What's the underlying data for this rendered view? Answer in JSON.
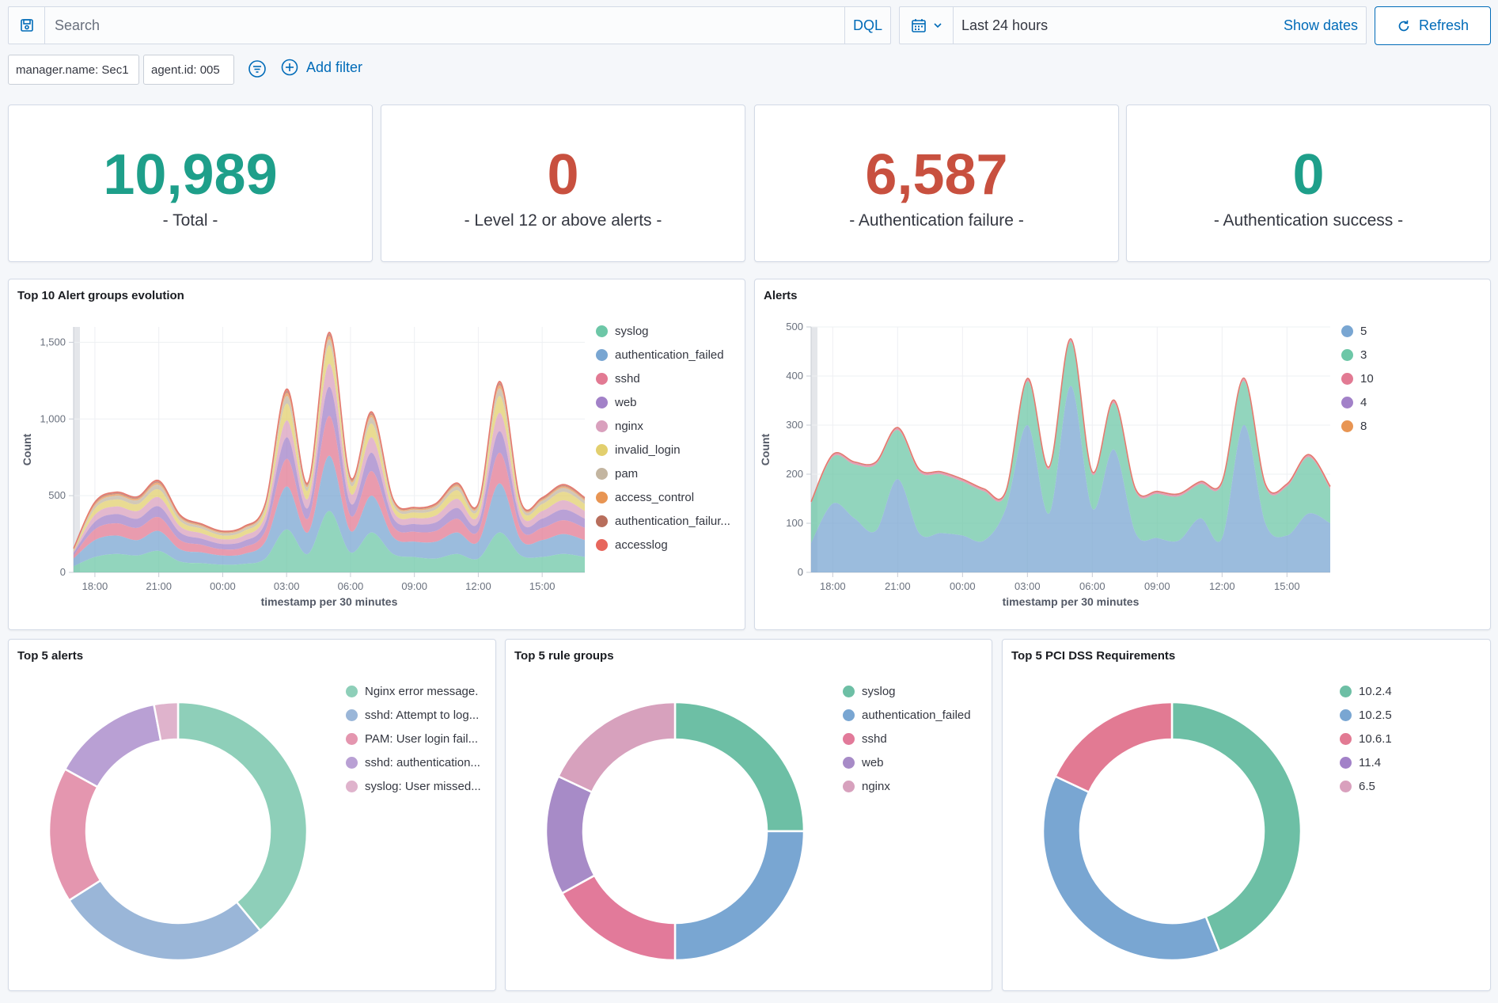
{
  "query": {
    "search_placeholder": "Search",
    "language": "DQL",
    "date_range": "Last 24 hours",
    "show_dates": "Show dates",
    "refresh": "Refresh"
  },
  "filters": {
    "pills": [
      "manager.name: Sec1",
      "agent.id: 005"
    ],
    "add_filter": "Add filter"
  },
  "metrics": [
    {
      "value": "10,989",
      "label": "- Total -",
      "color": "#1e9f8a"
    },
    {
      "value": "0",
      "label": "- Level 12 or above alerts -",
      "color": "#c8503f"
    },
    {
      "value": "6,587",
      "label": "- Authentication failure -",
      "color": "#c8503f"
    },
    {
      "value": "0",
      "label": "- Authentication success -",
      "color": "#1e9f8a"
    }
  ],
  "charts": {
    "evolution": {
      "title": "Top 10 Alert groups evolution",
      "ylabel": "Count",
      "xlabel": "timestamp per 30 minutes",
      "yticks": [
        "1,500",
        "1,000",
        "500",
        "0"
      ],
      "xticks": [
        "18:00",
        "21:00",
        "00:00",
        "03:00",
        "06:00",
        "09:00",
        "12:00",
        "15:00"
      ]
    },
    "alerts": {
      "title": "Alerts",
      "ylabel": "Count",
      "xlabel": "timestamp per 30 minutes",
      "yticks": [
        "500",
        "400",
        "300",
        "200",
        "100",
        "0"
      ],
      "xticks": [
        "18:00",
        "21:00",
        "00:00",
        "03:00",
        "06:00",
        "09:00",
        "12:00",
        "15:00"
      ]
    },
    "top5alerts": {
      "title": "Top 5 alerts"
    },
    "top5rules": {
      "title": "Top 5 rule groups"
    },
    "top5pci": {
      "title": "Top 5 PCI DSS Requirements"
    }
  },
  "chart_data": [
    {
      "type": "area",
      "stacked": true,
      "title": "Top 10 Alert groups evolution",
      "xlabel": "timestamp per 30 minutes",
      "ylabel": "Count",
      "ylim": [
        0,
        1600
      ],
      "x": [
        "17:00",
        "18:00",
        "19:00",
        "20:00",
        "21:00",
        "22:00",
        "23:00",
        "00:00",
        "01:00",
        "02:00",
        "03:00",
        "04:00",
        "05:00",
        "06:00",
        "07:00",
        "08:00",
        "09:00",
        "10:00",
        "11:00",
        "12:00",
        "13:00",
        "14:00",
        "15:00",
        "16:00",
        "16:30"
      ],
      "series": [
        {
          "name": "syslog",
          "color": "#6dc7a7",
          "values": [
            40,
            100,
            120,
            110,
            140,
            70,
            60,
            50,
            55,
            90,
            280,
            120,
            400,
            130,
            260,
            120,
            100,
            90,
            120,
            90,
            260,
            110,
            100,
            120,
            100
          ]
        },
        {
          "name": "authentication_failed",
          "color": "#79a6d2",
          "values": [
            50,
            110,
            120,
            100,
            130,
            80,
            70,
            60,
            65,
            110,
            280,
            140,
            360,
            140,
            240,
            110,
            100,
            110,
            140,
            110,
            320,
            100,
            110,
            130,
            110
          ]
        },
        {
          "name": "sshd",
          "color": "#e27a93",
          "values": [
            20,
            70,
            80,
            80,
            90,
            60,
            50,
            40,
            45,
            70,
            180,
            90,
            260,
            100,
            160,
            70,
            65,
            70,
            90,
            70,
            200,
            70,
            80,
            90,
            80
          ]
        },
        {
          "name": "web",
          "color": "#a281c8",
          "values": [
            15,
            50,
            60,
            60,
            70,
            50,
            40,
            35,
            40,
            55,
            140,
            70,
            190,
            80,
            120,
            55,
            50,
            55,
            70,
            55,
            140,
            55,
            60,
            70,
            60
          ]
        },
        {
          "name": "nginx",
          "color": "#d9a0bd",
          "values": [
            10,
            45,
            50,
            50,
            60,
            40,
            35,
            30,
            35,
            45,
            110,
            60,
            150,
            65,
            100,
            45,
            40,
            45,
            60,
            45,
            120,
            45,
            50,
            60,
            50
          ]
        },
        {
          "name": "invalid_login",
          "color": "#e2cf6e",
          "values": [
            10,
            40,
            45,
            45,
            50,
            35,
            30,
            25,
            30,
            40,
            110,
            55,
            120,
            55,
            90,
            40,
            35,
            40,
            55,
            40,
            110,
            40,
            45,
            55,
            45
          ]
        },
        {
          "name": "pam",
          "color": "#c3b5a0",
          "values": [
            5,
            20,
            25,
            25,
            30,
            20,
            15,
            15,
            15,
            20,
            50,
            25,
            40,
            25,
            40,
            20,
            18,
            20,
            25,
            20,
            50,
            20,
            22,
            25,
            22
          ]
        },
        {
          "name": "access_control",
          "color": "#e89553",
          "values": [
            3,
            10,
            10,
            10,
            12,
            8,
            7,
            6,
            6,
            8,
            20,
            10,
            20,
            10,
            16,
            8,
            7,
            8,
            10,
            8,
            20,
            8,
            9,
            10,
            9
          ]
        },
        {
          "name": "authentication_failures",
          "color": "#b86e5c",
          "values": [
            2,
            8,
            8,
            8,
            10,
            7,
            6,
            5,
            5,
            7,
            15,
            8,
            15,
            8,
            12,
            6,
            5,
            6,
            8,
            6,
            15,
            6,
            7,
            8,
            7
          ]
        },
        {
          "name": "accesslog",
          "color": "#e7665c",
          "values": [
            1,
            5,
            5,
            5,
            6,
            4,
            3,
            3,
            3,
            4,
            10,
            5,
            10,
            5,
            8,
            4,
            3,
            4,
            5,
            4,
            10,
            4,
            4,
            5,
            4
          ]
        }
      ]
    },
    {
      "type": "area",
      "stacked": true,
      "title": "Alerts",
      "xlabel": "timestamp per 30 minutes",
      "ylabel": "Count",
      "ylim": [
        0,
        500
      ],
      "x": [
        "17:00",
        "18:00",
        "19:00",
        "20:00",
        "21:00",
        "22:00",
        "23:00",
        "00:00",
        "01:00",
        "02:00",
        "03:00",
        "04:00",
        "05:00",
        "06:00",
        "07:00",
        "08:00",
        "09:00",
        "10:00",
        "11:00",
        "12:00",
        "13:00",
        "14:00",
        "15:00",
        "16:00",
        "16:30"
      ],
      "series": [
        {
          "name": "5",
          "color": "#79a6d2",
          "values": [
            60,
            140,
            110,
            85,
            190,
            80,
            80,
            75,
            65,
            130,
            300,
            120,
            380,
            130,
            250,
            80,
            70,
            65,
            110,
            70,
            300,
            100,
            75,
            120,
            100
          ]
        },
        {
          "name": "3",
          "color": "#6dc7a7",
          "values": [
            80,
            95,
            110,
            135,
            100,
            125,
            120,
            110,
            100,
            30,
            89,
            90,
            90,
            70,
            95,
            85,
            90,
            90,
            70,
            110,
            90,
            75,
            100,
            115,
            70
          ]
        },
        {
          "name": "10",
          "color": "#e27a93",
          "values": [
            2,
            3,
            3,
            3,
            3,
            3,
            3,
            3,
            3,
            3,
            4,
            3,
            4,
            3,
            4,
            3,
            3,
            3,
            3,
            3,
            4,
            3,
            3,
            3,
            3
          ]
        },
        {
          "name": "4",
          "color": "#a281c8",
          "values": [
            1,
            1,
            1,
            1,
            1,
            1,
            1,
            1,
            1,
            1,
            1,
            1,
            1,
            1,
            1,
            1,
            1,
            1,
            1,
            1,
            1,
            1,
            1,
            1,
            1
          ]
        },
        {
          "name": "8",
          "color": "#e89553",
          "values": [
            1,
            1,
            1,
            1,
            1,
            1,
            1,
            1,
            1,
            1,
            1,
            1,
            1,
            1,
            1,
            1,
            1,
            1,
            1,
            1,
            1,
            1,
            1,
            1,
            1
          ]
        }
      ]
    },
    {
      "type": "pie",
      "donut": true,
      "title": "Top 5 alerts",
      "categories": [
        "Nginx error message.",
        "sshd: Attempt to log...",
        "PAM: User login fail...",
        "sshd: authentication...",
        "syslog: User missed..."
      ],
      "values": [
        39,
        27,
        17,
        14,
        3
      ],
      "colors": [
        "#8ecfb9",
        "#9ab6d8",
        "#e496af",
        "#b9a0d4",
        "#dfb3cc"
      ]
    },
    {
      "type": "pie",
      "donut": true,
      "title": "Top 5 rule groups",
      "categories": [
        "syslog",
        "authentication_failed",
        "sshd",
        "web",
        "nginx"
      ],
      "values": [
        25,
        25,
        17,
        15,
        18
      ],
      "colors": [
        "#6dbfa5",
        "#79a6d2",
        "#e27a9a",
        "#a78bc7",
        "#d7a1bd"
      ]
    },
    {
      "type": "pie",
      "donut": true,
      "title": "Top 5 PCI DSS Requirements",
      "categories": [
        "10.2.4",
        "10.2.5",
        "10.6.1",
        "11.4",
        "6.5"
      ],
      "values": [
        44,
        38,
        18,
        0,
        0
      ],
      "colors": [
        "#6dbfa5",
        "#79a6d2",
        "#e27a93",
        "#a281c8",
        "#d9a0bd"
      ]
    }
  ]
}
